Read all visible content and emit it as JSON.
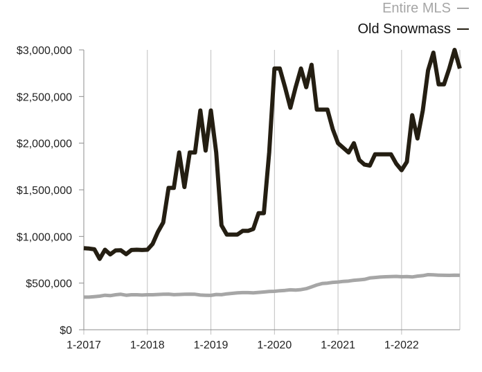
{
  "chart_data": {
    "type": "line",
    "title": "",
    "xlabel": "",
    "ylabel": "",
    "ylim": [
      0,
      3000000
    ],
    "y_ticks": [
      {
        "value": 0,
        "label": "$0"
      },
      {
        "value": 500000,
        "label": "$500,000"
      },
      {
        "value": 1000000,
        "label": "$1,000,000"
      },
      {
        "value": 1500000,
        "label": "$1,500,000"
      },
      {
        "value": 2000000,
        "label": "$2,000,000"
      },
      {
        "value": 2500000,
        "label": "$2,500,000"
      },
      {
        "value": 3000000,
        "label": "$3,000,000"
      }
    ],
    "x_ticks": [
      "1-2017",
      "1-2018",
      "1-2019",
      "1-2020",
      "1-2021",
      "1-2022"
    ],
    "grid": "vertical",
    "legend_position": "top-right",
    "x": [
      "1-2017",
      "2-2017",
      "3-2017",
      "4-2017",
      "5-2017",
      "6-2017",
      "7-2017",
      "8-2017",
      "9-2017",
      "10-2017",
      "11-2017",
      "12-2017",
      "1-2018",
      "2-2018",
      "3-2018",
      "4-2018",
      "5-2018",
      "6-2018",
      "7-2018",
      "8-2018",
      "9-2018",
      "10-2018",
      "11-2018",
      "12-2018",
      "1-2019",
      "2-2019",
      "3-2019",
      "4-2019",
      "5-2019",
      "6-2019",
      "7-2019",
      "8-2019",
      "9-2019",
      "10-2019",
      "11-2019",
      "12-2019",
      "1-2020",
      "2-2020",
      "3-2020",
      "4-2020",
      "5-2020",
      "6-2020",
      "7-2020",
      "8-2020",
      "9-2020",
      "10-2020",
      "11-2020",
      "12-2020",
      "1-2021",
      "2-2021",
      "3-2021",
      "4-2021",
      "5-2021",
      "6-2021",
      "7-2021",
      "8-2021",
      "9-2021",
      "10-2021",
      "11-2021",
      "12-2021",
      "1-2022",
      "2-2022",
      "3-2022",
      "4-2022",
      "5-2022",
      "6-2022",
      "7-2022",
      "8-2022",
      "9-2022",
      "10-2022",
      "11-2022",
      "12-2022"
    ],
    "series": [
      {
        "name": "Entire MLS",
        "color": "#a6a6a6",
        "values": [
          350000,
          350000,
          355000,
          360000,
          370000,
          365000,
          375000,
          380000,
          370000,
          375000,
          375000,
          372000,
          375000,
          375000,
          378000,
          380000,
          382000,
          376000,
          378000,
          380000,
          382000,
          380000,
          372000,
          370000,
          368000,
          378000,
          376000,
          385000,
          390000,
          395000,
          398000,
          398000,
          396000,
          400000,
          405000,
          410000,
          412000,
          418000,
          422000,
          428000,
          425000,
          430000,
          440000,
          460000,
          480000,
          495000,
          500000,
          508000,
          512000,
          518000,
          522000,
          530000,
          535000,
          540000,
          555000,
          560000,
          565000,
          568000,
          570000,
          572000,
          568000,
          570000,
          566000,
          575000,
          580000,
          590000,
          588000,
          585000,
          584000,
          583000,
          585000,
          584000
        ]
      },
      {
        "name": "Old Snowmass",
        "color": "#241e12",
        "values": [
          875000,
          870000,
          862000,
          760000,
          858000,
          808000,
          850000,
          852000,
          810000,
          855000,
          858000,
          855000,
          858000,
          920000,
          1050000,
          1150000,
          1520000,
          1520000,
          1900000,
          1530000,
          1900000,
          1900000,
          2350000,
          1920000,
          2350000,
          1900000,
          1120000,
          1020000,
          1020000,
          1020000,
          1060000,
          1060000,
          1080000,
          1250000,
          1250000,
          1900000,
          2800000,
          2800000,
          2600000,
          2380000,
          2600000,
          2800000,
          2600000,
          2840000,
          2360000,
          2360000,
          2360000,
          2150000,
          2000000,
          1950000,
          1900000,
          2000000,
          1820000,
          1770000,
          1760000,
          1880000,
          1880000,
          1880000,
          1880000,
          1780000,
          1710000,
          1800000,
          2300000,
          2050000,
          2350000,
          2780000,
          2970000,
          2630000,
          2630000,
          2800000,
          3000000,
          2800000
        ]
      }
    ]
  }
}
